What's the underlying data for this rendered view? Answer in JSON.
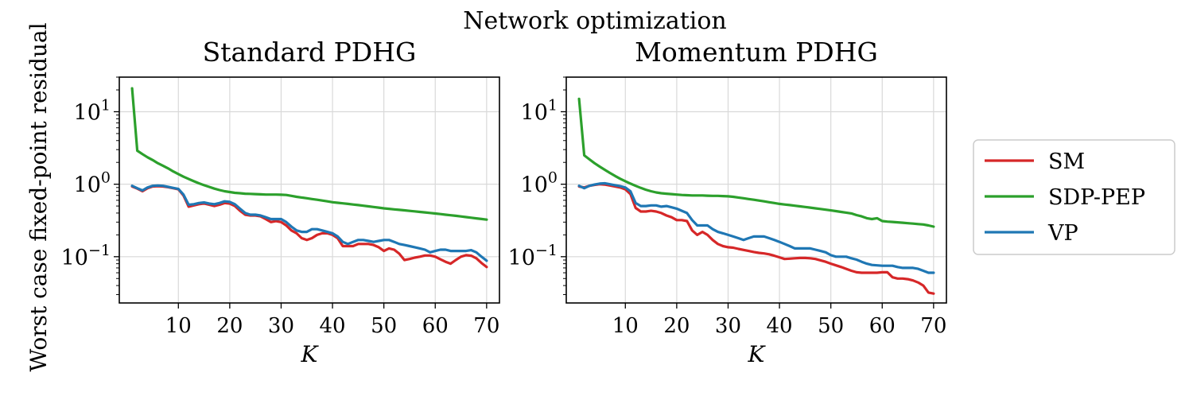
{
  "figure": {
    "suptitle": "Network optimization",
    "ylabel": "Worst case fixed-point residual"
  },
  "legend": {
    "placement": "right",
    "entries": [
      {
        "label": "SM",
        "color": "#d62728"
      },
      {
        "label": "SDP-PEP",
        "color": "#2ca02c"
      },
      {
        "label": "VP",
        "color": "#1f77b4"
      }
    ]
  },
  "chart_data": [
    {
      "type": "line",
      "title": "Standard PDHG",
      "xlabel": "K",
      "ylabel": "Worst case fixed-point residual",
      "yscale": "log",
      "xlim": [
        -1.5,
        72.5
      ],
      "ylim": [
        0.023,
        30
      ],
      "xticks": [
        "10",
        "20",
        "30",
        "40",
        "50",
        "60",
        "70"
      ],
      "xtick_values": [
        10,
        20,
        30,
        40,
        50,
        60,
        70
      ],
      "yticks": [
        {
          "value": 10,
          "base": "10",
          "exp": "1"
        },
        {
          "value": 1,
          "base": "10",
          "exp": "0"
        },
        {
          "value": 0.1,
          "base": "10",
          "exp": "−1"
        }
      ],
      "grid": true,
      "series": [
        {
          "name": "SM",
          "color": "#d62728",
          "x": [
            1,
            2,
            3,
            4,
            5,
            6,
            7,
            8,
            9,
            10,
            11,
            12,
            13,
            14,
            15,
            16,
            17,
            18,
            19,
            20,
            21,
            22,
            23,
            24,
            25,
            26,
            27,
            28,
            29,
            30,
            31,
            32,
            33,
            34,
            35,
            36,
            37,
            38,
            39,
            40,
            41,
            42,
            43,
            44,
            45,
            46,
            47,
            48,
            49,
            50,
            51,
            52,
            53,
            54,
            55,
            56,
            57,
            58,
            59,
            60,
            61,
            62,
            63,
            64,
            65,
            66,
            67,
            68,
            69,
            70
          ],
          "values": [
            0.93,
            0.87,
            0.8,
            0.88,
            0.93,
            0.94,
            0.93,
            0.91,
            0.88,
            0.85,
            0.7,
            0.49,
            0.51,
            0.53,
            0.54,
            0.52,
            0.5,
            0.52,
            0.55,
            0.54,
            0.5,
            0.43,
            0.38,
            0.37,
            0.37,
            0.36,
            0.33,
            0.3,
            0.31,
            0.3,
            0.27,
            0.23,
            0.21,
            0.18,
            0.17,
            0.18,
            0.2,
            0.21,
            0.21,
            0.2,
            0.18,
            0.14,
            0.14,
            0.14,
            0.15,
            0.15,
            0.15,
            0.145,
            0.135,
            0.12,
            0.13,
            0.125,
            0.11,
            0.09,
            0.093,
            0.097,
            0.1,
            0.104,
            0.104,
            0.1,
            0.092,
            0.085,
            0.08,
            0.09,
            0.1,
            0.105,
            0.103,
            0.095,
            0.082,
            0.072
          ]
        },
        {
          "name": "SDP-PEP",
          "color": "#2ca02c",
          "x": [
            1,
            2,
            3,
            4,
            5,
            6,
            7,
            8,
            9,
            10,
            11,
            12,
            13,
            14,
            15,
            16,
            17,
            18,
            19,
            20,
            21,
            22,
            23,
            24,
            25,
            26,
            27,
            28,
            29,
            30,
            31,
            32,
            33,
            34,
            35,
            36,
            37,
            38,
            39,
            40,
            41,
            42,
            43,
            44,
            45,
            46,
            47,
            48,
            49,
            50,
            51,
            52,
            53,
            54,
            55,
            56,
            57,
            58,
            59,
            60,
            61,
            62,
            63,
            64,
            65,
            66,
            67,
            68,
            69,
            70
          ],
          "values": [
            21,
            2.9,
            2.6,
            2.35,
            2.15,
            1.95,
            1.8,
            1.65,
            1.5,
            1.38,
            1.27,
            1.18,
            1.1,
            1.03,
            0.97,
            0.92,
            0.87,
            0.83,
            0.8,
            0.78,
            0.76,
            0.75,
            0.74,
            0.735,
            0.73,
            0.725,
            0.72,
            0.72,
            0.72,
            0.715,
            0.71,
            0.69,
            0.67,
            0.655,
            0.64,
            0.625,
            0.61,
            0.595,
            0.58,
            0.565,
            0.555,
            0.545,
            0.535,
            0.525,
            0.515,
            0.505,
            0.495,
            0.485,
            0.475,
            0.465,
            0.458,
            0.45,
            0.443,
            0.436,
            0.429,
            0.422,
            0.415,
            0.408,
            0.401,
            0.394,
            0.387,
            0.38,
            0.373,
            0.366,
            0.359,
            0.352,
            0.345,
            0.338,
            0.331,
            0.325
          ]
        },
        {
          "name": "VP",
          "color": "#1f77b4",
          "x": [
            1,
            2,
            3,
            4,
            5,
            6,
            7,
            8,
            9,
            10,
            11,
            12,
            13,
            14,
            15,
            16,
            17,
            18,
            19,
            20,
            21,
            22,
            23,
            24,
            25,
            26,
            27,
            28,
            29,
            30,
            31,
            32,
            33,
            34,
            35,
            36,
            37,
            38,
            39,
            40,
            41,
            42,
            43,
            44,
            45,
            46,
            47,
            48,
            49,
            50,
            51,
            52,
            53,
            54,
            55,
            56,
            57,
            58,
            59,
            60,
            61,
            62,
            63,
            64,
            65,
            66,
            67,
            68,
            69,
            70
          ],
          "values": [
            0.95,
            0.88,
            0.82,
            0.9,
            0.95,
            0.96,
            0.95,
            0.92,
            0.89,
            0.86,
            0.72,
            0.52,
            0.53,
            0.55,
            0.56,
            0.54,
            0.53,
            0.55,
            0.58,
            0.57,
            0.53,
            0.46,
            0.4,
            0.38,
            0.38,
            0.37,
            0.35,
            0.33,
            0.33,
            0.33,
            0.3,
            0.26,
            0.23,
            0.22,
            0.22,
            0.24,
            0.24,
            0.23,
            0.22,
            0.21,
            0.19,
            0.16,
            0.15,
            0.16,
            0.17,
            0.17,
            0.165,
            0.16,
            0.165,
            0.17,
            0.17,
            0.16,
            0.15,
            0.145,
            0.14,
            0.135,
            0.13,
            0.125,
            0.115,
            0.12,
            0.125,
            0.125,
            0.12,
            0.12,
            0.12,
            0.12,
            0.123,
            0.115,
            0.1,
            0.088
          ]
        }
      ]
    },
    {
      "type": "line",
      "title": "Momentum PDHG",
      "xlabel": "K",
      "ylabel": "",
      "yscale": "log",
      "xlim": [
        -1.5,
        72.5
      ],
      "ylim": [
        0.023,
        30
      ],
      "xticks": [
        "10",
        "20",
        "30",
        "40",
        "50",
        "60",
        "70"
      ],
      "xtick_values": [
        10,
        20,
        30,
        40,
        50,
        60,
        70
      ],
      "yticks": [
        {
          "value": 10,
          "base": "10",
          "exp": "1"
        },
        {
          "value": 1,
          "base": "10",
          "exp": "0"
        },
        {
          "value": 0.1,
          "base": "10",
          "exp": "−1"
        }
      ],
      "grid": true,
      "series": [
        {
          "name": "SM",
          "color": "#d62728",
          "x": [
            1,
            2,
            3,
            4,
            5,
            6,
            7,
            8,
            9,
            10,
            11,
            12,
            13,
            14,
            15,
            16,
            17,
            18,
            19,
            20,
            21,
            22,
            23,
            24,
            25,
            26,
            27,
            28,
            29,
            30,
            31,
            32,
            33,
            34,
            35,
            36,
            37,
            38,
            39,
            40,
            41,
            42,
            43,
            44,
            45,
            46,
            47,
            48,
            49,
            50,
            51,
            52,
            53,
            54,
            55,
            56,
            57,
            58,
            59,
            60,
            61,
            62,
            63,
            64,
            65,
            66,
            67,
            68,
            69,
            70
          ],
          "values": [
            0.93,
            0.9,
            0.95,
            0.98,
            1.0,
            0.99,
            0.96,
            0.93,
            0.9,
            0.85,
            0.73,
            0.47,
            0.42,
            0.42,
            0.43,
            0.42,
            0.4,
            0.37,
            0.35,
            0.32,
            0.32,
            0.31,
            0.23,
            0.2,
            0.22,
            0.2,
            0.17,
            0.15,
            0.14,
            0.135,
            0.133,
            0.128,
            0.124,
            0.12,
            0.116,
            0.113,
            0.111,
            0.108,
            0.103,
            0.098,
            0.093,
            0.094,
            0.095,
            0.096,
            0.096,
            0.095,
            0.093,
            0.089,
            0.085,
            0.08,
            0.076,
            0.072,
            0.068,
            0.064,
            0.061,
            0.06,
            0.06,
            0.06,
            0.06,
            0.061,
            0.061,
            0.052,
            0.05,
            0.05,
            0.049,
            0.047,
            0.044,
            0.04,
            0.032,
            0.031
          ]
        },
        {
          "name": "SDP-PEP",
          "color": "#2ca02c",
          "x": [
            1,
            2,
            3,
            4,
            5,
            6,
            7,
            8,
            9,
            10,
            11,
            12,
            13,
            14,
            15,
            16,
            17,
            18,
            19,
            20,
            21,
            22,
            23,
            24,
            25,
            26,
            27,
            28,
            29,
            30,
            31,
            32,
            33,
            34,
            35,
            36,
            37,
            38,
            39,
            40,
            41,
            42,
            43,
            44,
            45,
            46,
            47,
            48,
            49,
            50,
            51,
            52,
            53,
            54,
            55,
            56,
            57,
            58,
            59,
            60,
            61,
            62,
            63,
            64,
            65,
            66,
            67,
            68,
            69,
            70
          ],
          "values": [
            15,
            2.5,
            2.2,
            1.95,
            1.75,
            1.58,
            1.43,
            1.3,
            1.19,
            1.1,
            1.02,
            0.95,
            0.89,
            0.84,
            0.8,
            0.77,
            0.75,
            0.74,
            0.73,
            0.72,
            0.71,
            0.705,
            0.7,
            0.7,
            0.7,
            0.695,
            0.69,
            0.69,
            0.685,
            0.68,
            0.67,
            0.655,
            0.64,
            0.625,
            0.61,
            0.595,
            0.58,
            0.565,
            0.55,
            0.535,
            0.525,
            0.515,
            0.505,
            0.495,
            0.485,
            0.475,
            0.465,
            0.455,
            0.445,
            0.435,
            0.425,
            0.415,
            0.405,
            0.395,
            0.375,
            0.36,
            0.34,
            0.33,
            0.34,
            0.31,
            0.305,
            0.302,
            0.298,
            0.294,
            0.29,
            0.286,
            0.282,
            0.278,
            0.27,
            0.26
          ]
        },
        {
          "name": "VP",
          "color": "#1f77b4",
          "x": [
            1,
            2,
            3,
            4,
            5,
            6,
            7,
            8,
            9,
            10,
            11,
            12,
            13,
            14,
            15,
            16,
            17,
            18,
            19,
            20,
            21,
            22,
            23,
            24,
            25,
            26,
            27,
            28,
            29,
            30,
            31,
            32,
            33,
            34,
            35,
            36,
            37,
            38,
            39,
            40,
            41,
            42,
            43,
            44,
            45,
            46,
            47,
            48,
            49,
            50,
            51,
            52,
            53,
            54,
            55,
            56,
            57,
            58,
            59,
            60,
            61,
            62,
            63,
            64,
            65,
            66,
            67,
            68,
            69,
            70
          ],
          "values": [
            0.95,
            0.88,
            0.95,
            0.99,
            1.02,
            1.03,
            1.0,
            0.97,
            0.94,
            0.9,
            0.8,
            0.55,
            0.5,
            0.5,
            0.51,
            0.51,
            0.49,
            0.5,
            0.48,
            0.46,
            0.43,
            0.4,
            0.32,
            0.27,
            0.27,
            0.27,
            0.24,
            0.22,
            0.21,
            0.2,
            0.19,
            0.18,
            0.17,
            0.18,
            0.19,
            0.19,
            0.19,
            0.18,
            0.17,
            0.16,
            0.15,
            0.14,
            0.13,
            0.13,
            0.13,
            0.13,
            0.125,
            0.12,
            0.115,
            0.105,
            0.1,
            0.1,
            0.1,
            0.095,
            0.091,
            0.085,
            0.08,
            0.077,
            0.076,
            0.075,
            0.075,
            0.075,
            0.072,
            0.07,
            0.07,
            0.07,
            0.068,
            0.064,
            0.06,
            0.06
          ]
        }
      ]
    }
  ]
}
